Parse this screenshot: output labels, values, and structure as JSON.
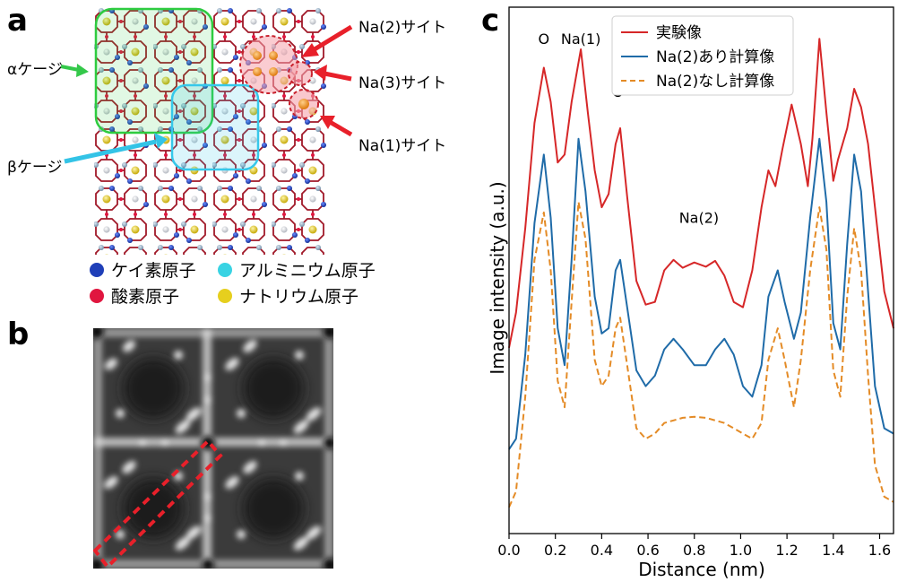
{
  "panel_a": {
    "letter": "a",
    "labels": {
      "alpha_cage": "αケージ",
      "beta_cage": "βケージ",
      "na2_site": "Na(2)サイト",
      "na3_site": "Na(3)サイト",
      "na1_site": "Na(1)サイト"
    },
    "legend": [
      {
        "label": "ケイ素原子",
        "color": "#1f3fb8"
      },
      {
        "label": "アルミニウム原子",
        "color": "#39d3e3"
      },
      {
        "label": "酸素原子",
        "color": "#e0163f"
      },
      {
        "label": "ナトリウム原子",
        "color": "#e6cf1e"
      }
    ],
    "colors": {
      "alpha_box": "#2ecc40",
      "beta_box": "#36c8ea",
      "arrow_red": "#e8202a",
      "arrow_green": "#34c84a",
      "arrow_cyan": "#33c3e6"
    }
  },
  "panel_b": {
    "letter": "b"
  },
  "panel_c": {
    "letter": "c",
    "chart_data": {
      "type": "line",
      "xlabel": "Distance (nm)",
      "ylabel": "Image intensity (a.u.)",
      "xlim": [
        0.0,
        1.66
      ],
      "xticks": [
        "0.0",
        "0.2",
        "0.4",
        "0.6",
        "0.8",
        "1.0",
        "1.2",
        "1.4",
        "1.6"
      ],
      "xtick_values": [
        0.0,
        0.2,
        0.4,
        0.6,
        0.8,
        1.0,
        1.2,
        1.4,
        1.6
      ],
      "ylim": [
        0,
        1
      ],
      "legend_position": "top-right",
      "annotations": [
        {
          "text": "O",
          "x": 0.15,
          "y": 0.93
        },
        {
          "text": "Na(1)",
          "x": 0.31,
          "y": 0.93
        },
        {
          "text": "O",
          "x": 0.47,
          "y": 0.83
        },
        {
          "text": "Na(2)",
          "x": 0.82,
          "y": 0.59
        }
      ],
      "series": [
        {
          "name": "実験像",
          "color": "#d62728",
          "dash": false,
          "points": [
            [
              0.0,
              0.353
            ],
            [
              0.03,
              0.42
            ],
            [
              0.07,
              0.58
            ],
            [
              0.11,
              0.78
            ],
            [
              0.15,
              0.885
            ],
            [
              0.18,
              0.82
            ],
            [
              0.21,
              0.705
            ],
            [
              0.24,
              0.72
            ],
            [
              0.27,
              0.82
            ],
            [
              0.31,
              0.92
            ],
            [
              0.34,
              0.8
            ],
            [
              0.37,
              0.69
            ],
            [
              0.4,
              0.62
            ],
            [
              0.43,
              0.645
            ],
            [
              0.46,
              0.74
            ],
            [
              0.48,
              0.77
            ],
            [
              0.51,
              0.64
            ],
            [
              0.55,
              0.48
            ],
            [
              0.59,
              0.435
            ],
            [
              0.63,
              0.44
            ],
            [
              0.67,
              0.5
            ],
            [
              0.71,
              0.52
            ],
            [
              0.75,
              0.505
            ],
            [
              0.8,
              0.515
            ],
            [
              0.85,
              0.507
            ],
            [
              0.89,
              0.518
            ],
            [
              0.93,
              0.49
            ],
            [
              0.97,
              0.44
            ],
            [
              1.01,
              0.43
            ],
            [
              1.05,
              0.5
            ],
            [
              1.09,
              0.62
            ],
            [
              1.12,
              0.69
            ],
            [
              1.15,
              0.66
            ],
            [
              1.18,
              0.73
            ],
            [
              1.22,
              0.815
            ],
            [
              1.26,
              0.74
            ],
            [
              1.29,
              0.66
            ],
            [
              1.31,
              0.75
            ],
            [
              1.34,
              0.94
            ],
            [
              1.37,
              0.8
            ],
            [
              1.4,
              0.67
            ],
            [
              1.42,
              0.71
            ],
            [
              1.46,
              0.77
            ],
            [
              1.49,
              0.845
            ],
            [
              1.52,
              0.81
            ],
            [
              1.55,
              0.74
            ],
            [
              1.58,
              0.62
            ],
            [
              1.62,
              0.46
            ],
            [
              1.66,
              0.39
            ]
          ]
        },
        {
          "name": "Na(2)あり計算像",
          "color": "#1f6ba8",
          "dash": false,
          "points": [
            [
              0.0,
              0.16
            ],
            [
              0.03,
              0.18
            ],
            [
              0.07,
              0.34
            ],
            [
              0.11,
              0.59
            ],
            [
              0.15,
              0.72
            ],
            [
              0.18,
              0.6
            ],
            [
              0.21,
              0.39
            ],
            [
              0.24,
              0.32
            ],
            [
              0.27,
              0.52
            ],
            [
              0.3,
              0.75
            ],
            [
              0.33,
              0.65
            ],
            [
              0.37,
              0.45
            ],
            [
              0.4,
              0.38
            ],
            [
              0.43,
              0.39
            ],
            [
              0.46,
              0.5
            ],
            [
              0.48,
              0.52
            ],
            [
              0.51,
              0.43
            ],
            [
              0.55,
              0.31
            ],
            [
              0.59,
              0.28
            ],
            [
              0.63,
              0.3
            ],
            [
              0.67,
              0.35
            ],
            [
              0.71,
              0.37
            ],
            [
              0.75,
              0.35
            ],
            [
              0.8,
              0.32
            ],
            [
              0.85,
              0.32
            ],
            [
              0.89,
              0.35
            ],
            [
              0.93,
              0.37
            ],
            [
              0.97,
              0.34
            ],
            [
              1.01,
              0.28
            ],
            [
              1.05,
              0.26
            ],
            [
              1.09,
              0.32
            ],
            [
              1.12,
              0.45
            ],
            [
              1.16,
              0.5
            ],
            [
              1.19,
              0.44
            ],
            [
              1.23,
              0.37
            ],
            [
              1.26,
              0.42
            ],
            [
              1.3,
              0.6
            ],
            [
              1.34,
              0.75
            ],
            [
              1.37,
              0.63
            ],
            [
              1.4,
              0.4
            ],
            [
              1.43,
              0.35
            ],
            [
              1.46,
              0.55
            ],
            [
              1.49,
              0.72
            ],
            [
              1.52,
              0.65
            ],
            [
              1.55,
              0.46
            ],
            [
              1.58,
              0.28
            ],
            [
              1.62,
              0.2
            ],
            [
              1.66,
              0.19
            ]
          ]
        },
        {
          "name": "Na(2)なし計算像",
          "color": "#e48b26",
          "dash": true,
          "points": [
            [
              0.0,
              0.05
            ],
            [
              0.03,
              0.08
            ],
            [
              0.07,
              0.26
            ],
            [
              0.11,
              0.52
            ],
            [
              0.15,
              0.61
            ],
            [
              0.18,
              0.5
            ],
            [
              0.21,
              0.29
            ],
            [
              0.24,
              0.24
            ],
            [
              0.27,
              0.44
            ],
            [
              0.3,
              0.63
            ],
            [
              0.33,
              0.56
            ],
            [
              0.37,
              0.33
            ],
            [
              0.4,
              0.28
            ],
            [
              0.43,
              0.3
            ],
            [
              0.46,
              0.39
            ],
            [
              0.48,
              0.41
            ],
            [
              0.51,
              0.32
            ],
            [
              0.55,
              0.2
            ],
            [
              0.59,
              0.18
            ],
            [
              0.63,
              0.19
            ],
            [
              0.67,
              0.21
            ],
            [
              0.71,
              0.215
            ],
            [
              0.75,
              0.22
            ],
            [
              0.8,
              0.222
            ],
            [
              0.85,
              0.22
            ],
            [
              0.89,
              0.215
            ],
            [
              0.93,
              0.21
            ],
            [
              0.97,
              0.2
            ],
            [
              1.01,
              0.19
            ],
            [
              1.05,
              0.18
            ],
            [
              1.09,
              0.21
            ],
            [
              1.12,
              0.33
            ],
            [
              1.16,
              0.39
            ],
            [
              1.19,
              0.33
            ],
            [
              1.23,
              0.24
            ],
            [
              1.26,
              0.33
            ],
            [
              1.3,
              0.5
            ],
            [
              1.34,
              0.62
            ],
            [
              1.37,
              0.54
            ],
            [
              1.4,
              0.31
            ],
            [
              1.43,
              0.26
            ],
            [
              1.46,
              0.45
            ],
            [
              1.49,
              0.58
            ],
            [
              1.52,
              0.5
            ],
            [
              1.55,
              0.3
            ],
            [
              1.58,
              0.13
            ],
            [
              1.62,
              0.07
            ],
            [
              1.66,
              0.06
            ]
          ]
        }
      ]
    }
  }
}
